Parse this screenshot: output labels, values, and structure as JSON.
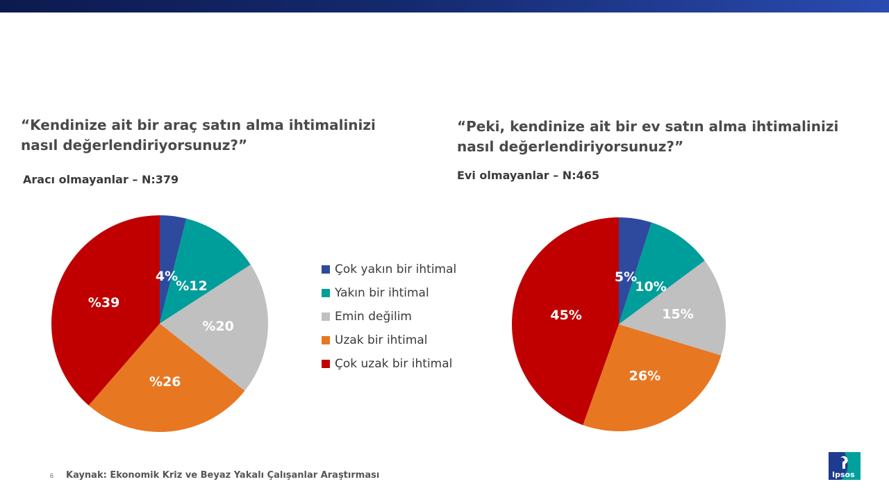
{
  "source": {
    "page_number": "6",
    "text": "Kaynak: Ekonomik Kriz ve Beyaz Yakalı Çalışanlar Araştırması"
  },
  "logo_text": "Ipsos",
  "legend": [
    {
      "label": "Çok yakın bir ihtimal",
      "color": "#2e4a9e"
    },
    {
      "label": "Yakın bir ihtimal",
      "color": "#009e9b"
    },
    {
      "label": "Emin değilim",
      "color": "#c0c0c0"
    },
    {
      "label": "Uzak bir ihtimal",
      "color": "#e87722"
    },
    {
      "label": "Çok uzak bir ihtimal",
      "color": "#c00000"
    }
  ],
  "chart_data": [
    {
      "type": "pie",
      "title": "“Kendinize ait bir araç satın alma ihtimalinizi nasıl değerlendiriyorsunuz?”",
      "subtitle": "Aracı olmayanlar – N:379",
      "categories": [
        "Çok yakın bir ihtimal",
        "Yakın bir ihtimal",
        "Emin değilim",
        "Uzak bir ihtimal",
        "Çok uzak bir ihtimal"
      ],
      "values": [
        4,
        12,
        20,
        26,
        39
      ],
      "data_labels": [
        "4%",
        "%12",
        "%20",
        "%26",
        "%39"
      ]
    },
    {
      "type": "pie",
      "title": "“Peki, kendinize ait bir ev satın alma ihtimalinizi nasıl değerlendiriyorsunuz?”",
      "subtitle": "Evi olmayanlar – N:465",
      "categories": [
        "Çok yakın bir ihtimal",
        "Yakın bir ihtimal",
        "Emin değilim",
        "Uzak bir ihtimal",
        "Çok uzak bir ihtimal"
      ],
      "values": [
        5,
        10,
        15,
        26,
        45
      ],
      "data_labels": [
        "5%",
        "10%",
        "15%",
        "26%",
        "45%"
      ]
    }
  ]
}
